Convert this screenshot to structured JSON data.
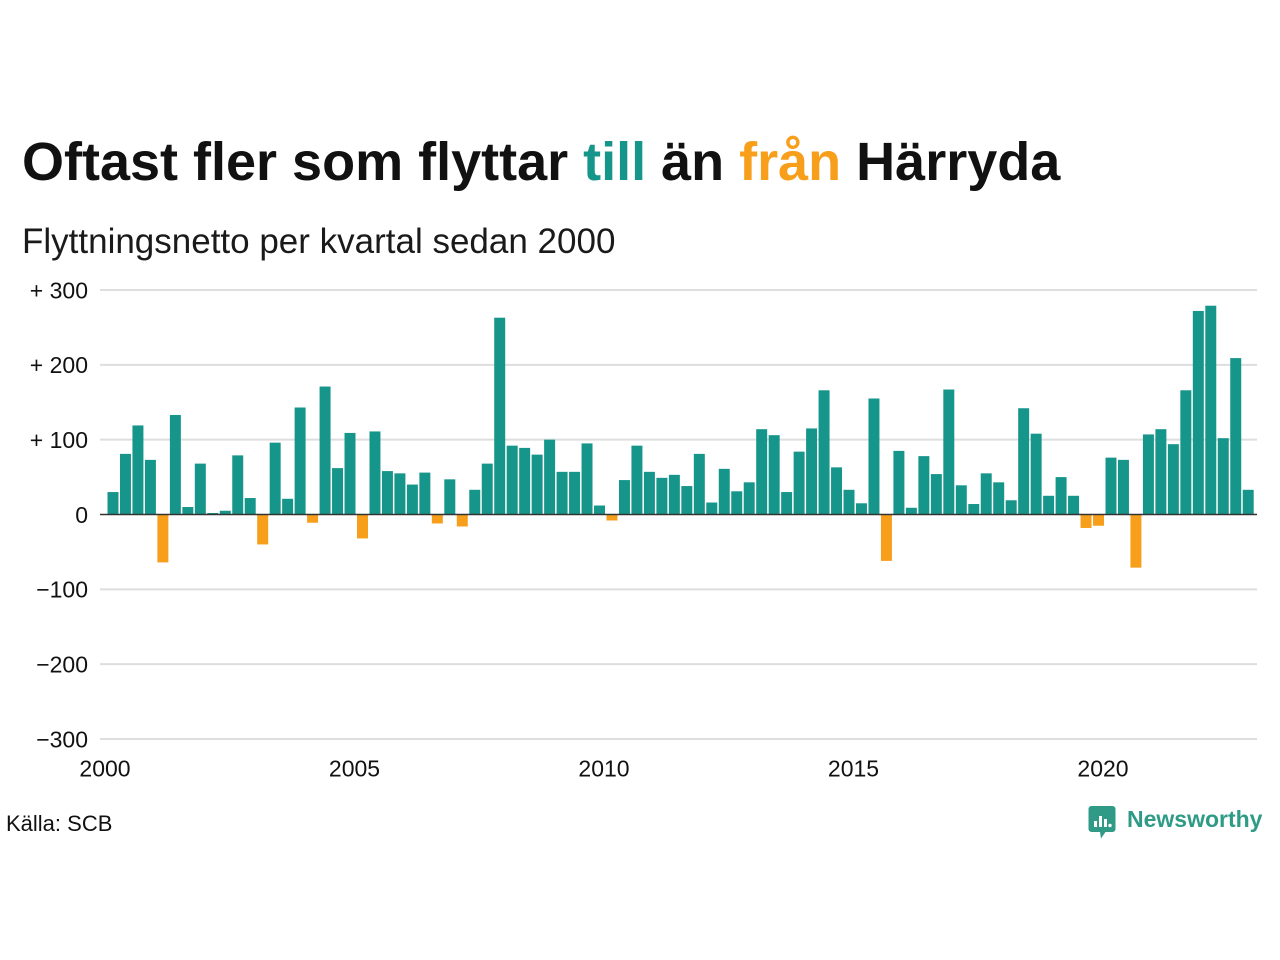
{
  "colors": {
    "positive": "#16958a",
    "negative": "#f79e1b",
    "grid": "#dedede",
    "zero_line": "#333333",
    "brand": "#2f9b87"
  },
  "chart_data": {
    "type": "bar",
    "title": [
      {
        "text": "Oftast fler som flyttar "
      },
      {
        "text": "till",
        "color": "#16958a"
      },
      {
        "text": " än "
      },
      {
        "text": "från",
        "color": "#f79e1b"
      },
      {
        "text": " Härryda"
      }
    ],
    "subtitle": "Flyttningsnetto per kvartal sedan 2000",
    "x": [
      "2000-Q1",
      "2000-Q2",
      "2000-Q3",
      "2000-Q4",
      "2001-Q1",
      "2001-Q2",
      "2001-Q3",
      "2001-Q4",
      "2002-Q1",
      "2002-Q2",
      "2002-Q3",
      "2002-Q4",
      "2003-Q1",
      "2003-Q2",
      "2003-Q3",
      "2003-Q4",
      "2004-Q1",
      "2004-Q2",
      "2004-Q3",
      "2004-Q4",
      "2005-Q1",
      "2005-Q2",
      "2005-Q3",
      "2005-Q4",
      "2006-Q1",
      "2006-Q2",
      "2006-Q3",
      "2006-Q4",
      "2007-Q1",
      "2007-Q2",
      "2007-Q3",
      "2007-Q4",
      "2008-Q1",
      "2008-Q2",
      "2008-Q3",
      "2008-Q4",
      "2009-Q1",
      "2009-Q2",
      "2009-Q3",
      "2009-Q4",
      "2010-Q1",
      "2010-Q2",
      "2010-Q3",
      "2010-Q4",
      "2011-Q1",
      "2011-Q2",
      "2011-Q3",
      "2011-Q4",
      "2012-Q1",
      "2012-Q2",
      "2012-Q3",
      "2012-Q4",
      "2013-Q1",
      "2013-Q2",
      "2013-Q3",
      "2013-Q4",
      "2014-Q1",
      "2014-Q2",
      "2014-Q3",
      "2014-Q4",
      "2015-Q1",
      "2015-Q2",
      "2015-Q3",
      "2015-Q4",
      "2016-Q1",
      "2016-Q2",
      "2016-Q3",
      "2016-Q4",
      "2017-Q1",
      "2017-Q2",
      "2017-Q3",
      "2017-Q4",
      "2018-Q1",
      "2018-Q2",
      "2018-Q3",
      "2018-Q4",
      "2019-Q1",
      "2019-Q2",
      "2019-Q3",
      "2019-Q4",
      "2020-Q1",
      "2020-Q2",
      "2020-Q3",
      "2020-Q4",
      "2021-Q1",
      "2021-Q2",
      "2021-Q3",
      "2021-Q4",
      "2022-Q1",
      "2022-Q2",
      "2022-Q3",
      "2022-Q4"
    ],
    "values": [
      30,
      81,
      119,
      73,
      -64,
      133,
      10,
      68,
      2,
      5,
      79,
      22,
      -40,
      96,
      21,
      143,
      -11,
      171,
      62,
      109,
      -32,
      111,
      58,
      55,
      40,
      56,
      -12,
      47,
      -16,
      33,
      68,
      263,
      92,
      89,
      80,
      100,
      57,
      57,
      95,
      12,
      -8,
      46,
      92,
      57,
      49,
      53,
      38,
      81,
      16,
      61,
      31,
      43,
      114,
      106,
      30,
      84,
      115,
      166,
      63,
      33,
      15,
      155,
      -62,
      85,
      9,
      78,
      54,
      167,
      39,
      14,
      55,
      43,
      19,
      142,
      108,
      25,
      50,
      25,
      -18,
      -15,
      76,
      73,
      -71,
      107,
      114,
      94,
      166,
      272,
      279,
      102,
      209,
      33
    ],
    "xlim": [
      2000,
      2023
    ],
    "ylim": [
      -300,
      300
    ],
    "x_ticks": [
      "2000",
      "2005",
      "2010",
      "2015",
      "2020"
    ],
    "y_ticks": [
      {
        "value": 300,
        "label": "+ 300"
      },
      {
        "value": 200,
        "label": "+ 200"
      },
      {
        "value": 100,
        "label": "+ 100"
      },
      {
        "value": 0,
        "label": "0"
      },
      {
        "value": -100,
        "label": "−100"
      },
      {
        "value": -200,
        "label": "−200"
      },
      {
        "value": -300,
        "label": "−300"
      }
    ],
    "grid": true
  },
  "footer": {
    "source": "Källa: SCB",
    "brand_name": "Newsworthy",
    "brand_icon": "newsworthy-logo-icon"
  }
}
